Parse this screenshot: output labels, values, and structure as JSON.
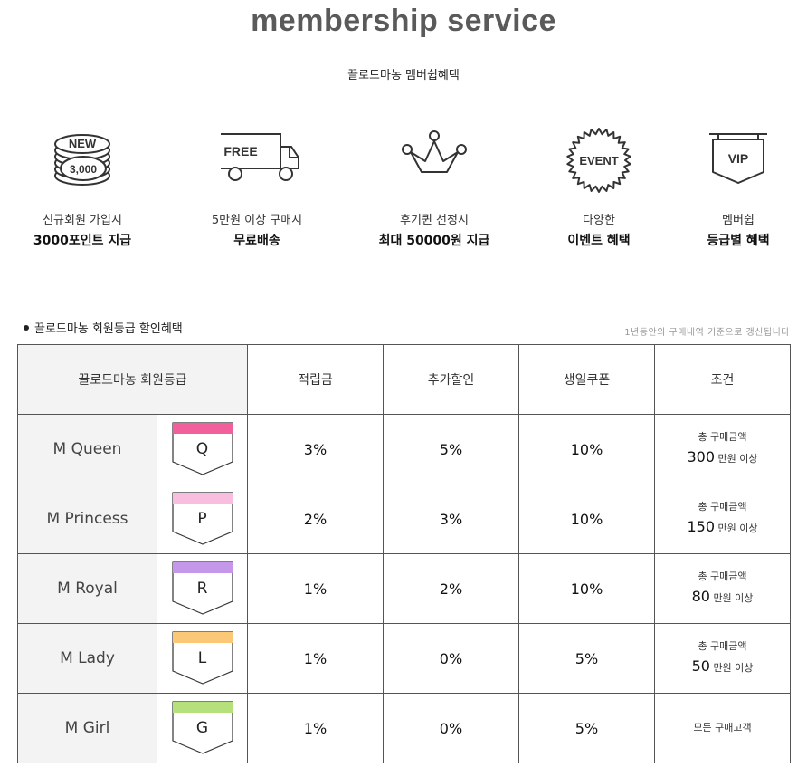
{
  "header": {
    "title": "membership service",
    "subtitle": "끌로드마농 멤버쉽혜택"
  },
  "benefits": [
    {
      "icon": "coin-stack-icon",
      "icon_text_top": "NEW",
      "icon_text_bottom": "3,000",
      "line1": "신규회원 가입시",
      "line2": "3000포인트 지급"
    },
    {
      "icon": "truck-icon",
      "icon_text": "FREE",
      "line1": "5만원 이상 구매시",
      "line2": "무료배송"
    },
    {
      "icon": "crown-icon",
      "line1": "후기퀸 선정시",
      "line2": "최대 50000원 지급"
    },
    {
      "icon": "event-seal-icon",
      "icon_text": "EVENT",
      "line1": "다양한",
      "line2": "이벤트 혜택"
    },
    {
      "icon": "vip-sign-icon",
      "icon_text": "VIP",
      "line1": "멤버쉽",
      "line2": "등급별 혜택"
    }
  ],
  "section": {
    "title": "끌로드마농 회원등급 할인혜택",
    "note": "1년동안의 구매내역 기준으로 갱신됩니다"
  },
  "table": {
    "headers": [
      "끌로드마농 회원등급",
      "적립금",
      "추가할인",
      "생일쿠폰",
      "조건"
    ],
    "rows": [
      {
        "name": "M Queen",
        "letter": "Q",
        "color": "#f2609b",
        "points": "3%",
        "discount": "5%",
        "coupon": "10%",
        "cond_top": "총 구매금액",
        "cond_amount": "300",
        "cond_unit": "만원 이상"
      },
      {
        "name": "M Princess",
        "letter": "P",
        "color": "#f9bde0",
        "points": "2%",
        "discount": "3%",
        "coupon": "10%",
        "cond_top": "총 구매금액",
        "cond_amount": "150",
        "cond_unit": "만원 이상"
      },
      {
        "name": "M Royal",
        "letter": "R",
        "color": "#c497ea",
        "points": "1%",
        "discount": "2%",
        "coupon": "10%",
        "cond_top": "총 구매금액",
        "cond_amount": "80",
        "cond_unit": "만원 이상"
      },
      {
        "name": "M Lady",
        "letter": "L",
        "color": "#fbc878",
        "points": "1%",
        "discount": "0%",
        "coupon": "5%",
        "cond_top": "총 구매금액",
        "cond_amount": "50",
        "cond_unit": "만원 이상"
      },
      {
        "name": "M Girl",
        "letter": "G",
        "color": "#b6e07c",
        "points": "1%",
        "discount": "0%",
        "coupon": "5%",
        "cond_top": "",
        "cond_amount": "",
        "cond_unit": "모든 구매고객"
      }
    ]
  }
}
